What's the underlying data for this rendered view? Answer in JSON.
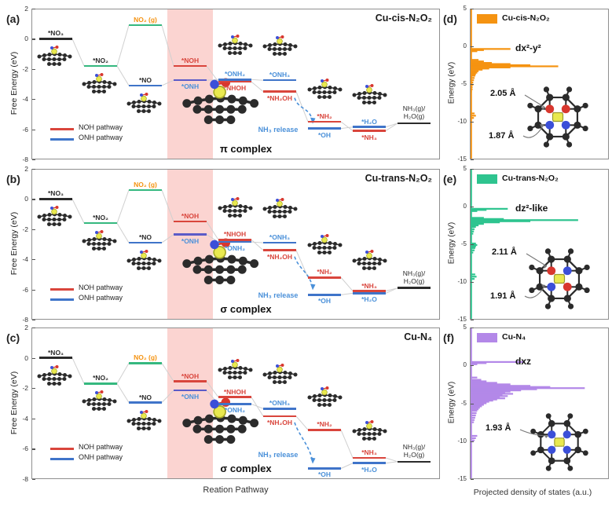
{
  "colors": {
    "red": "#d9453c",
    "blue": "#3f74c9",
    "lightblue": "#4a90d9",
    "green": "#35b87f",
    "orange": "#f59311",
    "black": "#2b2b2b",
    "purple": "#5b5bc8",
    "band": "rgba(244,124,116,0.33)",
    "connector": "#d0d0d0",
    "pdos_orange": "#f59311",
    "pdos_green": "#2ec48f",
    "pdos_purple": "#b388e8",
    "atom_C": "#2b2b2b",
    "atom_N": "#3b4fd8",
    "atom_O": "#d8372e",
    "atom_Cu": "#e9e94f"
  },
  "axis": {
    "fe_label": "Free Energy (eV)",
    "en_label": "Energy (eV)",
    "rx_label": "Reation Pathway",
    "px_label": "Projected density of states (a.u.)"
  },
  "chart_data": [
    {
      "id": "a",
      "panel_label": "(a)",
      "type": "energy-levels",
      "title": "Cu-cis-N₂O₂",
      "ylabel": "Free Energy (eV)",
      "ylim": [
        -8,
        2
      ],
      "yticks": [
        "2",
        "0",
        "-2",
        "-4",
        "-6",
        "-8"
      ],
      "complex_label": "π complex",
      "release_label": "NH₃ release",
      "legend": [
        {
          "label": "NOH pathway",
          "color": "red"
        },
        {
          "label": "ONH pathway",
          "color": "blue"
        }
      ],
      "levels": [
        {
          "label": "*NO₃",
          "e": 0.0,
          "col": 0,
          "color": "black",
          "lpos": "above",
          "lcolor": "black"
        },
        {
          "label": "*NO₂",
          "e": -1.8,
          "col": 1,
          "color": "green",
          "lpos": "above",
          "lcolor": "black"
        },
        {
          "label": "NO₂ (g)",
          "e": 0.9,
          "col": 2,
          "color": "green",
          "lpos": "above",
          "lcolor": "orange"
        },
        {
          "label": "*NO",
          "e": -3.1,
          "col": 2,
          "color": "blue",
          "lpos": "above",
          "lcolor": "black"
        },
        {
          "label": "*NOH",
          "e": -1.8,
          "col": 3,
          "color": "red",
          "lpos": "above",
          "lcolor": "red"
        },
        {
          "label": "*ONH",
          "e": -2.75,
          "col": 3,
          "color": "purple",
          "lpos": "below",
          "lcolor": "lightblue"
        },
        {
          "label": "*ONH₂",
          "e": -2.7,
          "col": 4,
          "color": "blue",
          "lpos": "above",
          "lcolor": "lightblue"
        },
        {
          "label": "*NHOH",
          "e": -2.85,
          "col": 4,
          "color": "red",
          "lpos": "below",
          "lcolor": "red"
        },
        {
          "label": "*ONH₃",
          "e": -2.75,
          "col": 5,
          "color": "blue",
          "lpos": "above",
          "lcolor": "lightblue"
        },
        {
          "label": "*NH₂OH",
          "e": -3.5,
          "col": 5,
          "color": "red",
          "lpos": "below",
          "lcolor": "red"
        },
        {
          "label": "*NH₂",
          "e": -5.5,
          "col": 6,
          "color": "red",
          "lpos": "above",
          "lcolor": "red"
        },
        {
          "label": "*OH",
          "e": -5.95,
          "col": 6,
          "color": "blue",
          "lpos": "below",
          "lcolor": "lightblue"
        },
        {
          "label": "*H₂O",
          "e": -5.85,
          "col": 7,
          "color": "blue",
          "lpos": "above",
          "lcolor": "lightblue"
        },
        {
          "label": "*NH₃",
          "e": -6.1,
          "col": 7,
          "color": "red",
          "lpos": "below",
          "lcolor": "red"
        },
        {
          "label": "NH₃(g)/H₂O(g)",
          "e": -5.6,
          "col": 8,
          "color": "black",
          "lpos": "above",
          "lcolor": "black",
          "twoline": true
        }
      ]
    },
    {
      "id": "b",
      "panel_label": "(b)",
      "type": "energy-levels",
      "title": "Cu-trans-N₂O₂",
      "ylabel": "Free Energy (eV)",
      "ylim": [
        -8,
        2
      ],
      "yticks": [
        "2",
        "0",
        "-2",
        "-4",
        "-6",
        "-8"
      ],
      "complex_label": "σ complex",
      "release_label": "NH₃ release",
      "legend": [
        {
          "label": "NOH pathway",
          "color": "red"
        },
        {
          "label": "ONH pathway",
          "color": "blue"
        }
      ],
      "levels": [
        {
          "label": "*NO₃",
          "e": 0.0,
          "col": 0,
          "color": "black",
          "lpos": "above",
          "lcolor": "black"
        },
        {
          "label": "*NO₂",
          "e": -1.6,
          "col": 1,
          "color": "green",
          "lpos": "above",
          "lcolor": "black"
        },
        {
          "label": "NO₂ (g)",
          "e": 0.6,
          "col": 2,
          "color": "green",
          "lpos": "above",
          "lcolor": "orange"
        },
        {
          "label": "*NO",
          "e": -2.9,
          "col": 2,
          "color": "blue",
          "lpos": "above",
          "lcolor": "black"
        },
        {
          "label": "*NOH",
          "e": -1.5,
          "col": 3,
          "color": "red",
          "lpos": "above",
          "lcolor": "red"
        },
        {
          "label": "*ONH",
          "e": -2.35,
          "col": 3,
          "color": "purple",
          "lpos": "below",
          "lcolor": "lightblue"
        },
        {
          "label": "*ONH₂",
          "e": -2.85,
          "col": 4,
          "color": "blue",
          "lpos": "below",
          "lcolor": "lightblue"
        },
        {
          "label": "*NHOH",
          "e": -2.7,
          "col": 4,
          "color": "red",
          "lpos": "above",
          "lcolor": "red"
        },
        {
          "label": "*ONH₃",
          "e": -2.9,
          "col": 5,
          "color": "blue",
          "lpos": "above",
          "lcolor": "lightblue"
        },
        {
          "label": "*NH₂OH",
          "e": -3.4,
          "col": 5,
          "color": "red",
          "lpos": "below",
          "lcolor": "red"
        },
        {
          "label": "*NH₂",
          "e": -5.2,
          "col": 6,
          "color": "red",
          "lpos": "above",
          "lcolor": "red"
        },
        {
          "label": "*OH",
          "e": -6.35,
          "col": 6,
          "color": "blue",
          "lpos": "below",
          "lcolor": "lightblue"
        },
        {
          "label": "*H₂O",
          "e": -6.25,
          "col": 7,
          "color": "blue",
          "lpos": "below",
          "lcolor": "lightblue"
        },
        {
          "label": "*NH₃",
          "e": -6.1,
          "col": 7,
          "color": "red",
          "lpos": "above",
          "lcolor": "red"
        },
        {
          "label": "NH₃(g)/H₂O(g)",
          "e": -5.9,
          "col": 8,
          "color": "black",
          "lpos": "above",
          "lcolor": "black",
          "twoline": true
        }
      ]
    },
    {
      "id": "c",
      "panel_label": "(c)",
      "type": "energy-levels",
      "title": "Cu-N₄",
      "ylabel": "Free Energy (eV)",
      "ylim": [
        -8,
        2
      ],
      "yticks": [
        "2",
        "0",
        "-2",
        "-4",
        "-6",
        "-8"
      ],
      "complex_label": "σ complex",
      "release_label": "NH₃ release",
      "legend": [
        {
          "label": "NOH pathway",
          "color": "red"
        },
        {
          "label": "ONH pathway",
          "color": "blue"
        }
      ],
      "levels": [
        {
          "label": "*NO₃",
          "e": 0.0,
          "col": 0,
          "color": "black",
          "lpos": "above",
          "lcolor": "black"
        },
        {
          "label": "*NO₂",
          "e": -1.7,
          "col": 1,
          "color": "green",
          "lpos": "above",
          "lcolor": "black"
        },
        {
          "label": "NO₂ (g)",
          "e": -0.35,
          "col": 2,
          "color": "green",
          "lpos": "above",
          "lcolor": "orange"
        },
        {
          "label": "*NO",
          "e": -2.95,
          "col": 2,
          "color": "blue",
          "lpos": "above",
          "lcolor": "black"
        },
        {
          "label": "*NOH",
          "e": -1.55,
          "col": 3,
          "color": "red",
          "lpos": "above",
          "lcolor": "red"
        },
        {
          "label": "*ONH",
          "e": -2.15,
          "col": 3,
          "color": "purple",
          "lpos": "below",
          "lcolor": "lightblue"
        },
        {
          "label": "*ONH₂",
          "e": -3.05,
          "col": 4,
          "color": "blue",
          "lpos": "below",
          "lcolor": "lightblue"
        },
        {
          "label": "*NHOH",
          "e": -2.6,
          "col": 4,
          "color": "red",
          "lpos": "above",
          "lcolor": "red"
        },
        {
          "label": "*ONH₃",
          "e": -3.35,
          "col": 5,
          "color": "blue",
          "lpos": "above",
          "lcolor": "lightblue"
        },
        {
          "label": "*NH₂OH",
          "e": -3.85,
          "col": 5,
          "color": "red",
          "lpos": "below",
          "lcolor": "red"
        },
        {
          "label": "*NH₂",
          "e": -4.75,
          "col": 6,
          "color": "red",
          "lpos": "above",
          "lcolor": "red"
        },
        {
          "label": "*OH",
          "e": -7.3,
          "col": 6,
          "color": "blue",
          "lpos": "below",
          "lcolor": "lightblue"
        },
        {
          "label": "*H₂O",
          "e": -6.95,
          "col": 7,
          "color": "blue",
          "lpos": "below",
          "lcolor": "lightblue"
        },
        {
          "label": "*NH₃",
          "e": -6.6,
          "col": 7,
          "color": "red",
          "lpos": "above",
          "lcolor": "red"
        },
        {
          "label": "NH₃(g)/H₂O(g)",
          "e": -6.85,
          "col": 8,
          "color": "black",
          "lpos": "above",
          "lcolor": "black",
          "twoline": true
        }
      ]
    },
    {
      "id": "d",
      "panel_label": "(d)",
      "type": "pdos",
      "legend_label": "Cu-cis-N₂O₂",
      "color": "pdos_orange",
      "ylabel": "Energy (eV)",
      "ylim": [
        -15,
        5
      ],
      "yticks": [
        "5",
        "0",
        "-5",
        "-10",
        "-15"
      ],
      "orbital": {
        "label": "dx²-y²",
        "e": -0.35
      },
      "molecule": "cis",
      "bonds": [
        {
          "text": "2.05 Å"
        },
        {
          "text": "1.87 Å"
        }
      ],
      "spikes": [
        [
          -0.35,
          0.3
        ],
        [
          -0.5,
          0.1
        ],
        [
          -0.65,
          0.05
        ],
        [
          -1.8,
          0.06
        ],
        [
          -2.0,
          0.1
        ],
        [
          -2.2,
          0.16
        ],
        [
          -2.35,
          0.3
        ],
        [
          -2.5,
          0.45
        ],
        [
          -2.65,
          0.66
        ],
        [
          -2.8,
          0.3
        ],
        [
          -2.95,
          0.14
        ],
        [
          -3.1,
          0.09
        ],
        [
          -3.3,
          0.06
        ],
        [
          -3.5,
          0.05
        ],
        [
          -3.7,
          0.04
        ],
        [
          -3.9,
          0.035
        ],
        [
          -4.2,
          0.03
        ],
        [
          -4.5,
          0.025
        ],
        [
          -4.8,
          0.02
        ],
        [
          -5.1,
          0.02
        ],
        [
          -5.4,
          0.015
        ],
        [
          -5.7,
          0.015
        ],
        [
          -6.0,
          0.01
        ],
        [
          -8.9,
          0.03
        ],
        [
          -9.2,
          0.04
        ],
        [
          -9.5,
          0.025
        ]
      ]
    },
    {
      "id": "e",
      "panel_label": "(e)",
      "type": "pdos",
      "legend_label": "Cu-trans-N₂O₂",
      "color": "pdos_green",
      "ylabel": "Energy (eV)",
      "ylim": [
        -15,
        5
      ],
      "yticks": [
        "5",
        "0",
        "-5",
        "-10",
        "-15"
      ],
      "orbital": {
        "label": "dz²-like",
        "e": -0.3
      },
      "molecule": "trans",
      "bonds": [
        {
          "text": "2.11 Å"
        },
        {
          "text": "1.91 Å"
        }
      ],
      "spikes": [
        [
          -0.3,
          0.28
        ],
        [
          -0.45,
          0.12
        ],
        [
          -0.6,
          0.05
        ],
        [
          -1.5,
          0.1
        ],
        [
          -1.65,
          0.25
        ],
        [
          -1.8,
          0.81
        ],
        [
          -1.95,
          0.45
        ],
        [
          -2.1,
          0.22
        ],
        [
          -2.3,
          0.1
        ],
        [
          -2.5,
          0.06
        ],
        [
          -2.7,
          0.04
        ],
        [
          -3.0,
          0.03
        ],
        [
          -3.3,
          0.025
        ],
        [
          -3.6,
          0.02
        ],
        [
          -4.9,
          0.04
        ],
        [
          -5.1,
          0.05
        ],
        [
          -5.3,
          0.04
        ],
        [
          -5.5,
          0.035
        ],
        [
          -5.8,
          0.03
        ],
        [
          -6.1,
          0.02
        ],
        [
          -9.0,
          0.035
        ],
        [
          -9.3,
          0.045
        ],
        [
          -9.6,
          0.03
        ]
      ]
    },
    {
      "id": "f",
      "panel_label": "(f)",
      "type": "pdos",
      "legend_label": "Cu-N₄",
      "color": "pdos_purple",
      "ylabel": "Energy (eV)",
      "ylim": [
        -15,
        5
      ],
      "yticks": [
        "5",
        "0",
        "-5",
        "-10",
        "-15"
      ],
      "orbital": {
        "label": "dxz",
        "e": 0.45
      },
      "molecule": "n4",
      "bonds": [
        {
          "text": "1.93 Å"
        }
      ],
      "spikes": [
        [
          0.45,
          0.4
        ],
        [
          0.3,
          0.12
        ],
        [
          0.15,
          0.05
        ],
        [
          -1.6,
          0.05
        ],
        [
          -1.9,
          0.08
        ],
        [
          -2.1,
          0.12
        ],
        [
          -2.3,
          0.2
        ],
        [
          -2.5,
          0.3
        ],
        [
          -2.7,
          0.45
        ],
        [
          -2.85,
          0.6
        ],
        [
          -3.0,
          0.86
        ],
        [
          -3.15,
          0.5
        ],
        [
          -3.3,
          0.38
        ],
        [
          -3.45,
          0.3
        ],
        [
          -3.6,
          0.26
        ],
        [
          -3.75,
          0.32
        ],
        [
          -3.9,
          0.24
        ],
        [
          -4.05,
          0.28
        ],
        [
          -4.2,
          0.22
        ],
        [
          -4.35,
          0.26
        ],
        [
          -4.5,
          0.2
        ],
        [
          -4.65,
          0.17
        ],
        [
          -4.8,
          0.14
        ],
        [
          -5.0,
          0.12
        ],
        [
          -5.2,
          0.1
        ],
        [
          -5.4,
          0.085
        ],
        [
          -5.6,
          0.07
        ],
        [
          -5.8,
          0.06
        ],
        [
          -6.0,
          0.05
        ],
        [
          -6.3,
          0.045
        ],
        [
          -6.6,
          0.04
        ],
        [
          -6.9,
          0.035
        ],
        [
          -7.2,
          0.03
        ],
        [
          -7.5,
          0.025
        ],
        [
          -9.3,
          0.05
        ],
        [
          -9.6,
          0.04
        ],
        [
          -9.9,
          0.03
        ]
      ]
    }
  ]
}
